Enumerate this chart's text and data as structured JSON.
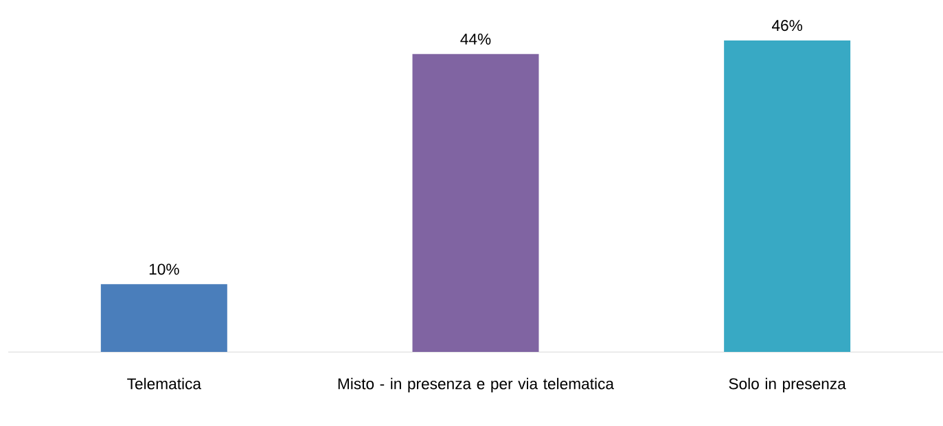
{
  "chart_data": {
    "type": "bar",
    "categories": [
      "Telematica",
      "Misto - in presenza e  per via telematica",
      "Solo in presenza"
    ],
    "values": [
      10,
      44,
      46
    ],
    "colors": [
      "#4a7ebb",
      "#8064a2",
      "#38a9c4"
    ],
    "value_labels": [
      "10%",
      "44%",
      "46%"
    ]
  }
}
